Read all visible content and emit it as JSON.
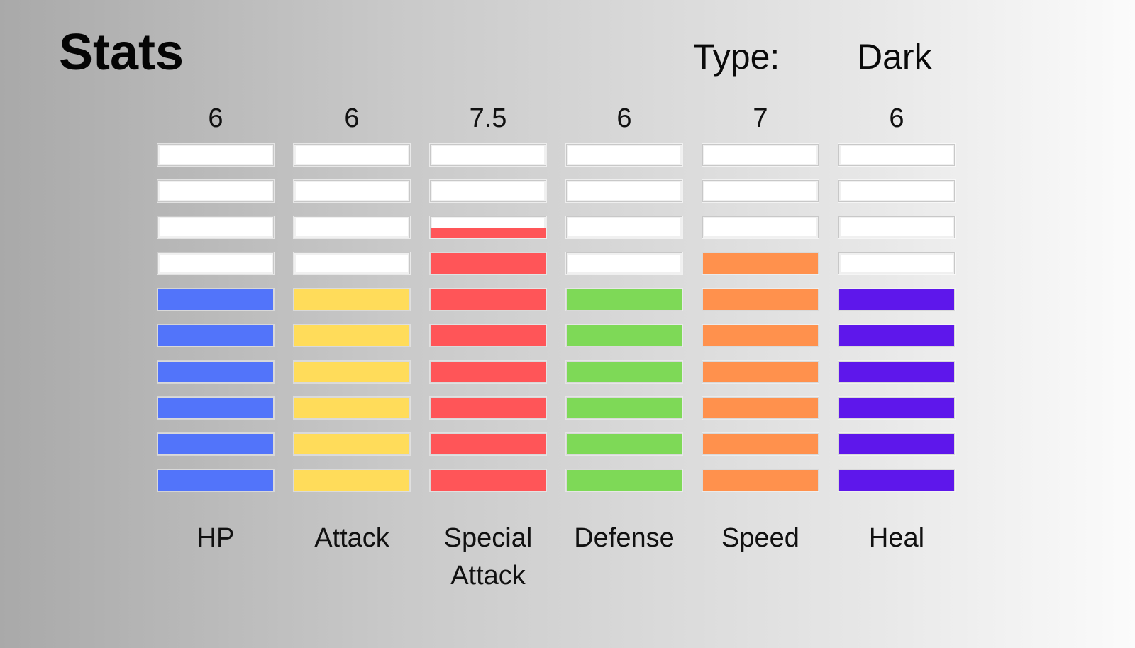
{
  "header": {
    "title": "Stats",
    "type_label": "Type:",
    "type_value": "Dark"
  },
  "max_segments": 10,
  "stats": [
    {
      "name": "HP",
      "value_text": "6",
      "value": 6,
      "color": "#5274fa"
    },
    {
      "name": "Attack",
      "value_text": "6",
      "value": 6,
      "color": "#ffdc5a"
    },
    {
      "name": "Special Attack",
      "value_text": "7.5",
      "value": 7.5,
      "color": "#ff5558"
    },
    {
      "name": "Defense",
      "value_text": "6",
      "value": 6,
      "color": "#7ed957"
    },
    {
      "name": "Speed",
      "value_text": "7",
      "value": 7,
      "color": "#ff914d"
    },
    {
      "name": "Heal",
      "value_text": "6",
      "value": 6,
      "color": "#5e17eb"
    }
  ]
}
